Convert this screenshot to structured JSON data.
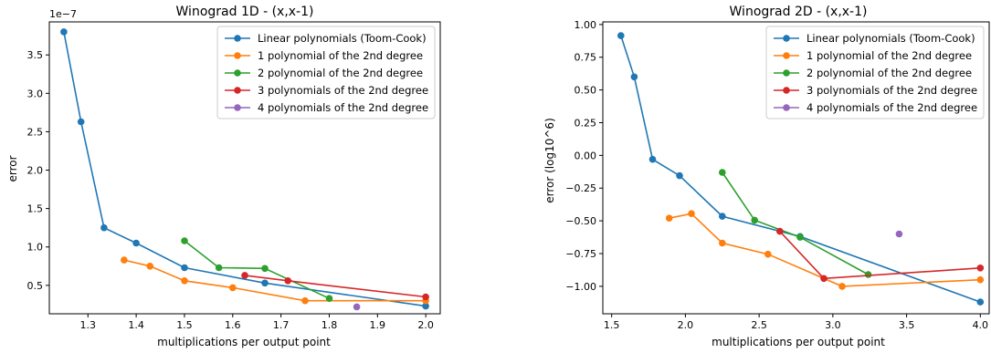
{
  "chart_data": [
    {
      "type": "line",
      "title": "Winograd 1D -  (x,x-1)",
      "xlabel": "multiplications per output point",
      "ylabel": "error",
      "offset_text": "1e−7",
      "xlim": [
        1.22,
        2.03
      ],
      "ylim": [
        0.13,
        3.93
      ],
      "xticks": [
        1.3,
        1.4,
        1.5,
        1.6,
        1.7,
        1.8,
        1.9,
        2.0
      ],
      "xtick_labels": [
        "1.3",
        "1.4",
        "1.5",
        "1.6",
        "1.7",
        "1.8",
        "1.9",
        "2.0"
      ],
      "yticks": [
        0.5,
        1.0,
        1.5,
        2.0,
        2.5,
        3.0,
        3.5
      ],
      "ytick_labels": [
        "0.5",
        "1.0",
        "1.5",
        "2.0",
        "2.5",
        "3.0",
        "3.5"
      ],
      "grid": false,
      "legend_position": "top-right",
      "series": [
        {
          "name": "Linear polynomials (Toom-Cook)",
          "color": "#1f77b4",
          "x": [
            1.25,
            1.2857,
            1.3333,
            1.4,
            1.5,
            1.6667,
            2.0
          ],
          "y": [
            3.8,
            2.63,
            1.25,
            1.05,
            0.73,
            0.53,
            0.23
          ]
        },
        {
          "name": "1 polynomial of the 2nd degree",
          "color": "#ff7f0e",
          "x": [
            1.375,
            1.4286,
            1.5,
            1.6,
            1.75,
            2.0
          ],
          "y": [
            0.83,
            0.75,
            0.56,
            0.47,
            0.3,
            0.3
          ]
        },
        {
          "name": "2 polynomial of the 2nd degree",
          "color": "#2ca02c",
          "x": [
            1.5,
            1.5714,
            1.6667,
            1.8
          ],
          "y": [
            1.08,
            0.73,
            0.72,
            0.33
          ]
        },
        {
          "name": "3 polynomials of the 2nd degree",
          "color": "#d62728",
          "x": [
            1.625,
            1.7143,
            2.0
          ],
          "y": [
            0.63,
            0.56,
            0.35
          ]
        },
        {
          "name": "4 polynomials of the 2nd degree",
          "color": "#9467bd",
          "x": [
            1.8571
          ],
          "y": [
            0.22
          ]
        }
      ]
    },
    {
      "type": "line",
      "title": "Winograd 2D -  (x,x-1)",
      "xlabel": "multiplications per output point",
      "ylabel": "error (log10^6)",
      "xlim": [
        1.44,
        4.06
      ],
      "ylim": [
        -1.21,
        1.02
      ],
      "xticks": [
        1.5,
        2.0,
        2.5,
        3.0,
        3.5,
        4.0
      ],
      "xtick_labels": [
        "1.5",
        "2.0",
        "2.5",
        "3.0",
        "3.5",
        "4.0"
      ],
      "yticks": [
        -1.0,
        -0.75,
        -0.5,
        -0.25,
        0.0,
        0.25,
        0.5,
        0.75,
        1.0
      ],
      "ytick_labels": [
        "−1.00",
        "−0.75",
        "−0.50",
        "−0.25",
        "0.00",
        "0.25",
        "0.50",
        "0.75",
        "1.00"
      ],
      "grid": false,
      "legend_position": "top-right",
      "series": [
        {
          "name": "Linear polynomials (Toom-Cook)",
          "color": "#1f77b4",
          "x": [
            1.5625,
            1.6531,
            1.7778,
            1.96,
            2.25,
            2.7778,
            4.0
          ],
          "y": [
            0.915,
            0.6,
            -0.03,
            -0.155,
            -0.465,
            -0.62,
            -1.12
          ]
        },
        {
          "name": "1 polynomial of the 2nd degree",
          "color": "#ff7f0e",
          "x": [
            1.8906,
            2.0408,
            2.25,
            2.56,
            3.0625,
            4.0
          ],
          "y": [
            -0.48,
            -0.445,
            -0.67,
            -0.755,
            -1.0,
            -0.95
          ]
        },
        {
          "name": "2 polynomial of the 2nd degree",
          "color": "#2ca02c",
          "x": [
            2.25,
            2.4694,
            2.7778,
            3.24
          ],
          "y": [
            -0.13,
            -0.495,
            -0.625,
            -0.91
          ]
        },
        {
          "name": "3 polynomials of the 2nd degree",
          "color": "#d62728",
          "x": [
            2.6406,
            2.9388,
            4.0
          ],
          "y": [
            -0.58,
            -0.94,
            -0.86
          ]
        },
        {
          "name": "4 polynomials of the 2nd degree",
          "color": "#9467bd",
          "x": [
            3.449
          ],
          "y": [
            -0.6
          ]
        }
      ]
    }
  ]
}
